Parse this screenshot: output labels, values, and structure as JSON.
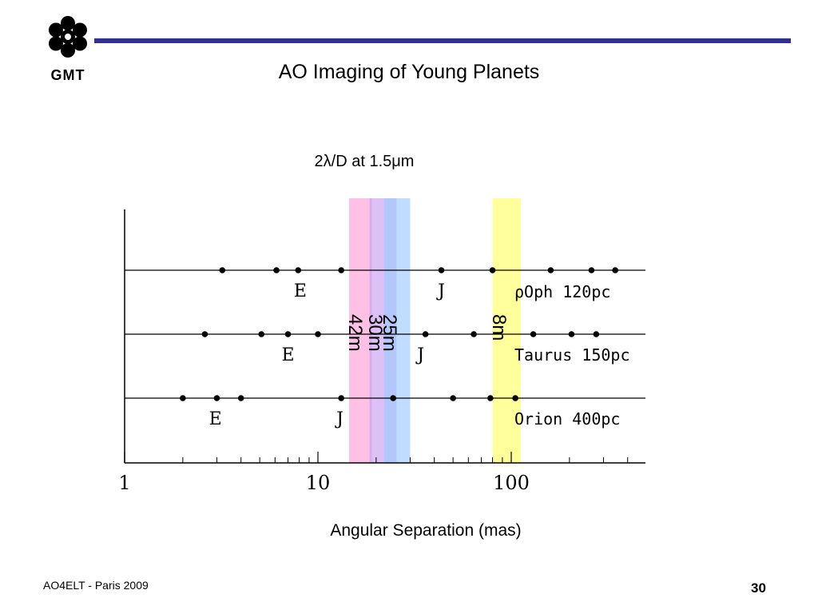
{
  "slide": {
    "title": "AO Imaging of Young Planets",
    "footer_left": "AO4ELT - Paris 2009",
    "page_number": "30",
    "logo_text": "GMT",
    "colors": {
      "title_bar": "#2e3192",
      "logo": "#000000"
    }
  },
  "chart_data": {
    "type": "scatter",
    "title": "2λ/D at 1.5μm",
    "xlabel": "Angular Separation (mas)",
    "ylabel": "",
    "x_scale": "log",
    "xlim": [
      1,
      500
    ],
    "x_tick_labels": [
      {
        "value": 1,
        "label": "1"
      },
      {
        "value": 10,
        "label": "10"
      },
      {
        "value": 100,
        "label": "100"
      }
    ],
    "minor_ticks": [
      2,
      3,
      4,
      5,
      6,
      7,
      8,
      9,
      20,
      30,
      40,
      50,
      60,
      70,
      80,
      90,
      200,
      300,
      400
    ],
    "grid": false,
    "bands": [
      {
        "label": "42m",
        "x_range": [
          14.5,
          19.0
        ],
        "color": "#ff9ed8"
      },
      {
        "label": "30m",
        "x_range": [
          18.5,
          25.5
        ],
        "color": "#c8a0f0"
      },
      {
        "label": "25m",
        "x_range": [
          22.0,
          30.0
        ],
        "color": "#9ecbff"
      },
      {
        "label": "8m",
        "x_range": [
          80.0,
          112.0
        ],
        "color": "#ffff66"
      }
    ],
    "series": [
      {
        "name": "ρOph 120pc",
        "x": [
          3.2,
          6.1,
          7.9,
          13.2,
          43.5,
          80.0,
          160.0,
          260.0,
          345.0
        ],
        "markers": [
          {
            "label": "E",
            "x": 8.1
          },
          {
            "label": "J",
            "x": 43.5
          }
        ]
      },
      {
        "name": "Taurus 150pc",
        "x": [
          2.6,
          5.1,
          7.0,
          10.0,
          36.0,
          64.0,
          130.0,
          205.0,
          275.0
        ],
        "markers": [
          {
            "label": "E",
            "x": 7.0
          },
          {
            "label": "J",
            "x": 34.0
          }
        ]
      },
      {
        "name": "Orion 400pc",
        "x": [
          2.0,
          3.0,
          4.0,
          13.2,
          24.5,
          50.0,
          78.0,
          105.0
        ],
        "markers": [
          {
            "label": "E",
            "x": 2.95
          },
          {
            "label": "J",
            "x": 13.0
          }
        ]
      }
    ]
  }
}
